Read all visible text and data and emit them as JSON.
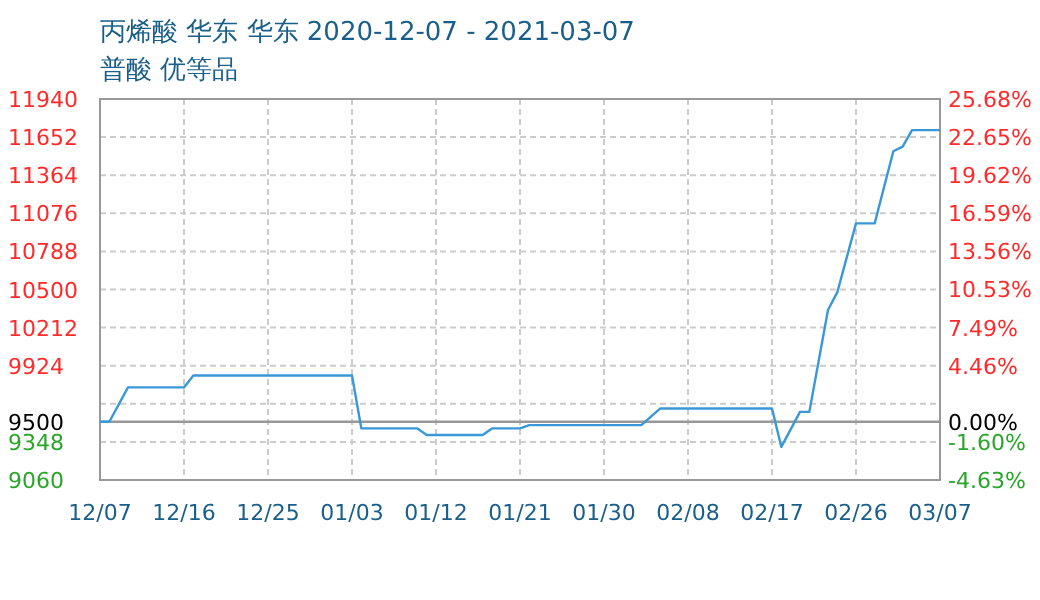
{
  "chart_data": {
    "type": "line",
    "title": "丙烯酸 华东 华东 2020-12-07 - 2021-03-07",
    "subtitle": "普酸 优等品",
    "x": [
      "2020-12-07",
      "2020-12-08",
      "2020-12-10",
      "2020-12-16",
      "2020-12-17",
      "2021-01-03",
      "2021-01-04",
      "2021-01-10",
      "2021-01-11",
      "2021-01-17",
      "2021-01-18",
      "2021-01-21",
      "2021-01-22",
      "2021-02-03",
      "2021-02-05",
      "2021-02-17",
      "2021-02-18",
      "2021-02-20",
      "2021-02-21",
      "2021-02-23",
      "2021-02-24",
      "2021-02-26",
      "2021-02-28",
      "2021-03-02",
      "2021-03-03",
      "2021-03-04",
      "2021-03-07"
    ],
    "series": [
      {
        "color": "#3a98d8",
        "values": [
          9500,
          9500,
          9760,
          9760,
          9850,
          9850,
          9450,
          9450,
          9400,
          9400,
          9450,
          9450,
          9475,
          9475,
          9600,
          9600,
          9310,
          9575,
          9575,
          10345,
          10480,
          11000,
          11000,
          11545,
          11580,
          11705,
          11705
        ]
      }
    ],
    "xlim": [
      "2020-12-07",
      "2021-03-07"
    ],
    "xticks": [
      {
        "value": "2020-12-07",
        "label": "12/07"
      },
      {
        "value": "2020-12-16",
        "label": "12/16"
      },
      {
        "value": "2020-12-25",
        "label": "12/25"
      },
      {
        "value": "2021-01-03",
        "label": "01/03"
      },
      {
        "value": "2021-01-12",
        "label": "01/12"
      },
      {
        "value": "2021-01-21",
        "label": "01/21"
      },
      {
        "value": "2021-01-30",
        "label": "01/30"
      },
      {
        "value": "2021-02-08",
        "label": "02/08"
      },
      {
        "value": "2021-02-17",
        "label": "02/17"
      },
      {
        "value": "2021-02-26",
        "label": "02/26"
      },
      {
        "value": "2021-03-07",
        "label": "03/07"
      }
    ],
    "ylim": [
      9060,
      11940
    ],
    "yticks": [
      9060,
      9348,
      {
        "value": 9636,
        "label": null
      },
      9924,
      10212,
      10500,
      10788,
      11076,
      11364,
      11652,
      11940
    ],
    "y2lim": [
      -4.63,
      25.68
    ],
    "y2ticks": [
      {
        "value": -4.63,
        "label": "-4.63%"
      },
      {
        "value": -1.6,
        "label": "-1.60%"
      },
      {
        "value": 0,
        "label": "0.00%"
      },
      {
        "value": 4.46,
        "label": "4.46%"
      },
      {
        "value": 7.49,
        "label": "7.49%"
      },
      {
        "value": 10.53,
        "label": "10.53%"
      },
      {
        "value": 13.56,
        "label": "13.56%"
      },
      {
        "value": 16.59,
        "label": "16.59%"
      },
      {
        "value": 19.62,
        "label": "19.62%"
      },
      {
        "value": 22.65,
        "label": "22.65%"
      },
      {
        "value": 25.68,
        "label": "25.68%"
      }
    ],
    "ref_lines": [
      {
        "axis": "y",
        "value": 9500,
        "label": "9500",
        "color": "#999999"
      }
    ],
    "grid": true,
    "line_style": "solid",
    "marker": "none"
  }
}
